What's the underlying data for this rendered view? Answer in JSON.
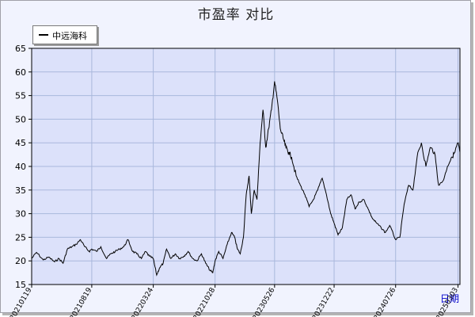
{
  "chart_data": {
    "type": "line",
    "title": "市盈率  对比",
    "xlabel": "日期",
    "ylabel": "",
    "ylim": [
      15,
      65
    ],
    "y_ticks": [
      15,
      20,
      25,
      30,
      35,
      40,
      45,
      50,
      55,
      60,
      65
    ],
    "x_ticks": [
      "20210119",
      "20210819",
      "20220324",
      "20221028",
      "20230526",
      "20231222",
      "20240726",
      "20250303"
    ],
    "grid": true,
    "legend_position": "top-left",
    "colors": {
      "plot_bg": "#dce1fa",
      "grid": "#a9b8dc",
      "line": "#000000",
      "frame_bg": "#f1f3fe"
    },
    "series": [
      {
        "name": "中远海科",
        "x": [
          "2021-01-19",
          "2021-02-05",
          "2021-03-01",
          "2021-03-20",
          "2021-04-10",
          "2021-04-25",
          "2021-05-10",
          "2021-05-25",
          "2021-06-10",
          "2021-06-25",
          "2021-07-10",
          "2021-07-25",
          "2021-08-10",
          "2021-08-19",
          "2021-09-05",
          "2021-09-20",
          "2021-10-10",
          "2021-10-25",
          "2021-11-10",
          "2021-11-25",
          "2021-12-10",
          "2021-12-25",
          "2022-01-10",
          "2022-01-25",
          "2022-02-10",
          "2022-02-25",
          "2022-03-10",
          "2022-03-24",
          "2022-04-05",
          "2022-04-15",
          "2022-04-28",
          "2022-05-10",
          "2022-05-25",
          "2022-06-10",
          "2022-06-25",
          "2022-07-10",
          "2022-07-25",
          "2022-08-10",
          "2022-08-25",
          "2022-09-10",
          "2022-09-25",
          "2022-10-10",
          "2022-10-20",
          "2022-10-28",
          "2022-11-10",
          "2022-11-25",
          "2022-12-10",
          "2022-12-25",
          "2023-01-05",
          "2023-01-15",
          "2023-01-25",
          "2023-02-05",
          "2023-02-15",
          "2023-02-25",
          "2023-03-05",
          "2023-03-15",
          "2023-03-25",
          "2023-04-05",
          "2023-04-15",
          "2023-04-25",
          "2023-05-05",
          "2023-05-15",
          "2023-05-26",
          "2023-06-05",
          "2023-06-15",
          "2023-06-25",
          "2023-07-05",
          "2023-07-15",
          "2023-07-25",
          "2023-08-10",
          "2023-08-25",
          "2023-09-10",
          "2023-09-25",
          "2023-10-10",
          "2023-10-25",
          "2023-11-10",
          "2023-11-25",
          "2023-12-10",
          "2023-12-22",
          "2024-01-05",
          "2024-01-20",
          "2024-02-05",
          "2024-02-20",
          "2024-03-05",
          "2024-03-20",
          "2024-04-05",
          "2024-04-20",
          "2024-05-05",
          "2024-05-20",
          "2024-06-05",
          "2024-06-20",
          "2024-07-05",
          "2024-07-26",
          "2024-08-10",
          "2024-08-25",
          "2024-09-10",
          "2024-09-25",
          "2024-10-10",
          "2024-10-25",
          "2024-11-10",
          "2024-11-25",
          "2024-12-10",
          "2024-12-25",
          "2025-01-10",
          "2025-01-25",
          "2025-02-10",
          "2025-02-20",
          "2025-03-03",
          "2025-03-10"
        ],
        "values": [
          20.5,
          21.8,
          20.2,
          20.8,
          19.8,
          20.5,
          19.5,
          22.5,
          23.0,
          23.5,
          24.5,
          23.0,
          22.0,
          22.5,
          22.0,
          23.0,
          20.5,
          21.5,
          22.0,
          22.5,
          23.0,
          24.5,
          22.0,
          21.5,
          20.5,
          22.0,
          21.0,
          20.5,
          17.0,
          18.5,
          19.5,
          22.5,
          20.5,
          21.5,
          20.5,
          21.0,
          22.0,
          20.5,
          20.0,
          21.5,
          19.5,
          18.0,
          17.5,
          20.0,
          22.0,
          20.5,
          23.5,
          26.0,
          25.0,
          22.5,
          21.5,
          25.0,
          34.0,
          38.0,
          30.0,
          35.0,
          33.0,
          45.0,
          52.0,
          44.0,
          48.0,
          52.0,
          58.0,
          54.0,
          48.0,
          46.0,
          44.0,
          43.0,
          42.0,
          38.0,
          36.0,
          34.0,
          31.5,
          33.0,
          35.0,
          37.5,
          34.0,
          30.0,
          28.0,
          25.5,
          27.0,
          33.0,
          34.0,
          31.0,
          32.5,
          33.0,
          31.0,
          29.0,
          28.0,
          27.0,
          26.0,
          27.5,
          24.5,
          25.0,
          32.0,
          36.0,
          35.0,
          42.0,
          45.0,
          40.0,
          44.0,
          43.0,
          36.0,
          37.0,
          40.0,
          42.0,
          43.0,
          45.0,
          43.0
        ]
      }
    ]
  }
}
